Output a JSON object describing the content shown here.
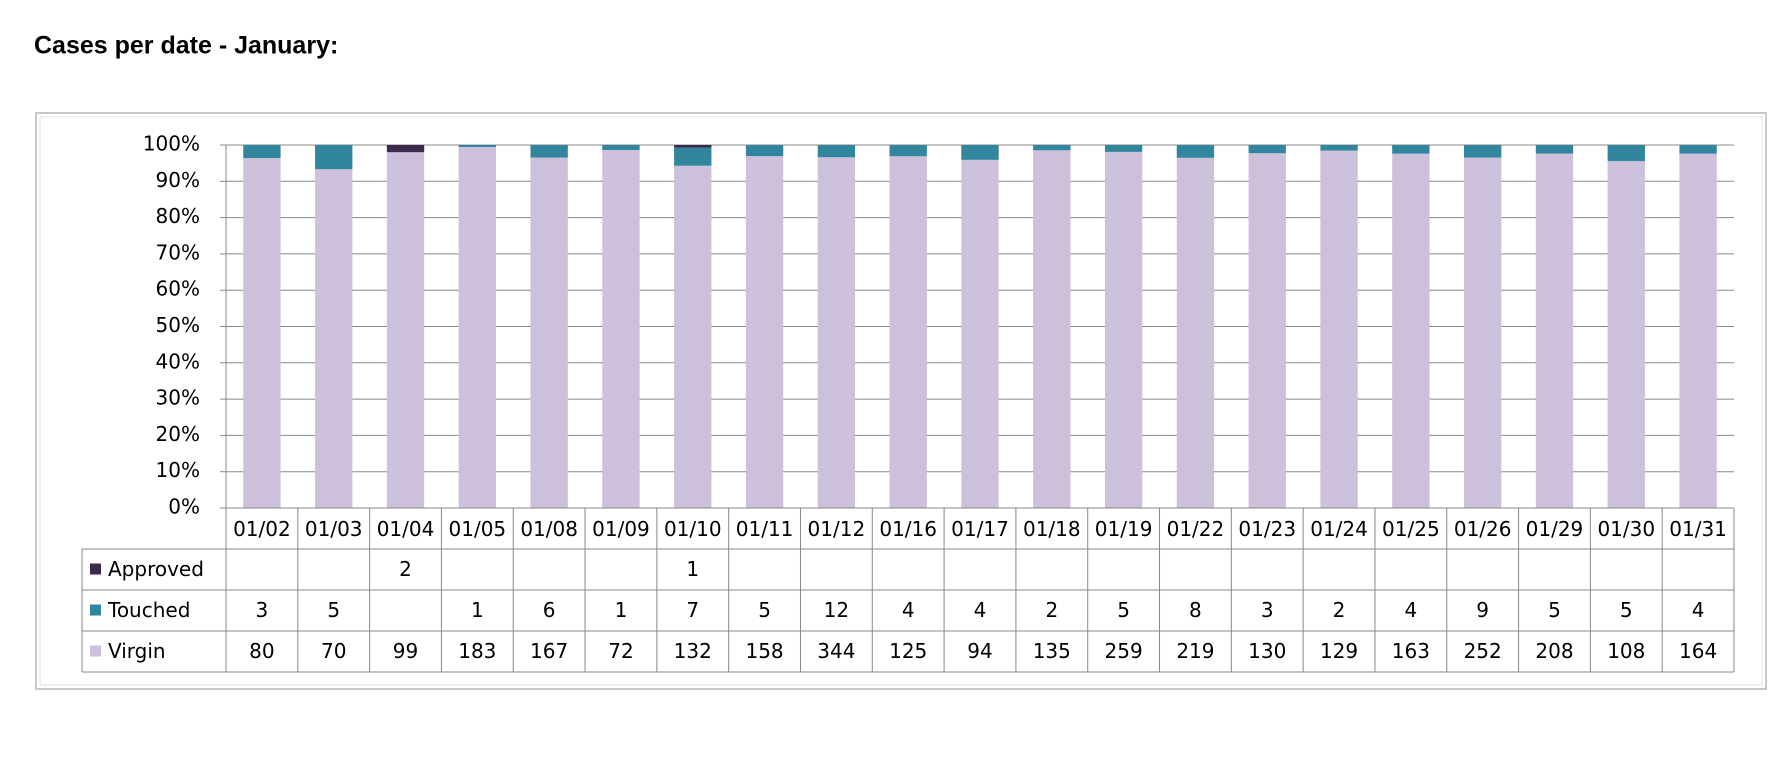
{
  "chart_data": {
    "type": "bar",
    "stack": "percent",
    "title": "Cases per date - January:",
    "categories": [
      "01/02",
      "01/03",
      "01/04",
      "01/05",
      "01/08",
      "01/09",
      "01/10",
      "01/11",
      "01/12",
      "01/16",
      "01/17",
      "01/18",
      "01/19",
      "01/22",
      "01/23",
      "01/24",
      "01/25",
      "01/26",
      "01/29",
      "01/30",
      "01/31"
    ],
    "series": [
      {
        "name": "Approved",
        "color": "#3b2a4a",
        "values": [
          null,
          null,
          2,
          null,
          null,
          null,
          1,
          null,
          null,
          null,
          null,
          null,
          null,
          null,
          null,
          null,
          null,
          null,
          null,
          null,
          null
        ]
      },
      {
        "name": "Touched",
        "color": "#31859c",
        "values": [
          3,
          5,
          null,
          1,
          6,
          1,
          7,
          5,
          12,
          4,
          4,
          2,
          5,
          8,
          3,
          2,
          4,
          9,
          5,
          5,
          4
        ]
      },
      {
        "name": "Virgin",
        "color": "#ccc0da",
        "values": [
          80,
          70,
          99,
          183,
          167,
          72,
          132,
          158,
          344,
          125,
          94,
          135,
          259,
          219,
          130,
          129,
          163,
          252,
          208,
          108,
          164
        ]
      }
    ],
    "ylim": [
      0,
      100
    ],
    "yticks": [
      {
        "value": 0,
        "label": "0%"
      },
      {
        "value": 10,
        "label": "10%"
      },
      {
        "value": 20,
        "label": "20%"
      },
      {
        "value": 30,
        "label": "30%"
      },
      {
        "value": 40,
        "label": "40%"
      },
      {
        "value": 50,
        "label": "50%"
      },
      {
        "value": 60,
        "label": "60%"
      },
      {
        "value": 70,
        "label": "70%"
      },
      {
        "value": 80,
        "label": "80%"
      },
      {
        "value": 90,
        "label": "90%"
      },
      {
        "value": 100,
        "label": "100%"
      }
    ],
    "grid": true
  }
}
